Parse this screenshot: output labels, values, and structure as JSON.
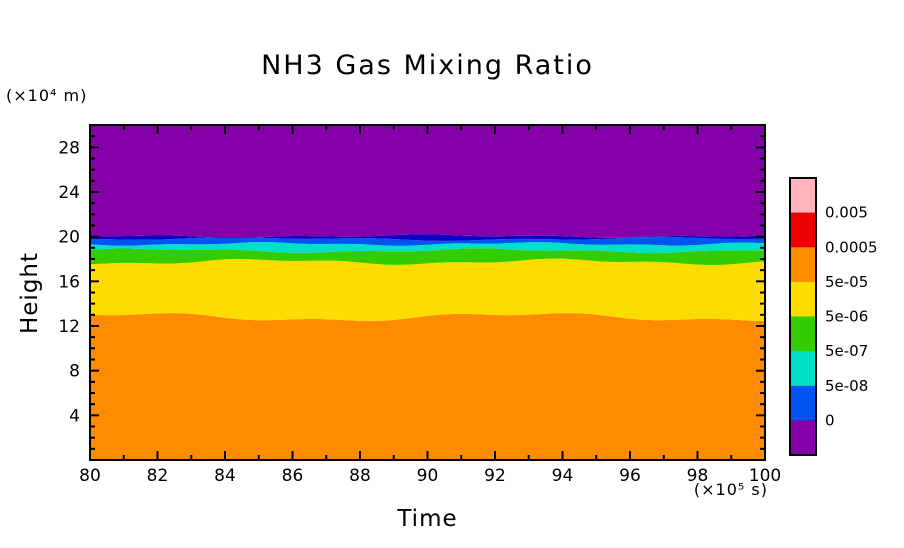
{
  "chart_data": {
    "type": "heatmap",
    "title": "NH3 Gas Mixing Ratio",
    "xlabel": "Time",
    "x_units": "(×10⁵ s)",
    "ylabel": "Height",
    "y_units": "(×10⁴ m)",
    "xlim": [
      80,
      100
    ],
    "ylim": [
      0,
      30
    ],
    "x_ticks": [
      80,
      82,
      84,
      86,
      88,
      90,
      92,
      94,
      96,
      98,
      100
    ],
    "y_ticks": [
      4,
      8,
      12,
      16,
      20,
      24,
      28
    ],
    "grid": false,
    "legend_position": "right-colorbar",
    "bands": [
      {
        "value": "5e-05 to 0.0005",
        "color": "#FF8C00",
        "y_from": 0,
        "y_to": 12.8
      },
      {
        "value": "5e-06 to 5e-05",
        "color": "#FFDC00",
        "y_from": 12.8,
        "y_to": 17.75
      },
      {
        "value": "5e-07 to 5e-06",
        "color": "#33CC00",
        "y_from": 17.75,
        "y_to": 18.75
      },
      {
        "value": "5e-08 to 5e-07",
        "color": "#00E0C8",
        "y_from": 18.75,
        "y_to": 19.35
      },
      {
        "value": "0 to 5e-08",
        "color": "#0055F0",
        "y_from": 19.35,
        "y_to": 19.8
      },
      {
        "value": "0 to 5e-08 dark",
        "color": "#0A00C8",
        "y_from": 19.8,
        "y_to": 20.05
      },
      {
        "value": "0",
        "color": "#8400A8",
        "y_from": 20.05,
        "y_to": 30
      }
    ],
    "colorbar": {
      "segment_colors_top_to_bottom": [
        "#FFB4BE",
        "#EE0000",
        "#FF8C00",
        "#FFDC00",
        "#33CC00",
        "#00E0C8",
        "#0055F0",
        "#8400A8"
      ],
      "boundary_labels_top_to_bottom": [
        "0.005",
        "0.0005",
        "5e-05",
        "5e-06",
        "5e-07",
        "5e-08",
        "0"
      ]
    }
  }
}
